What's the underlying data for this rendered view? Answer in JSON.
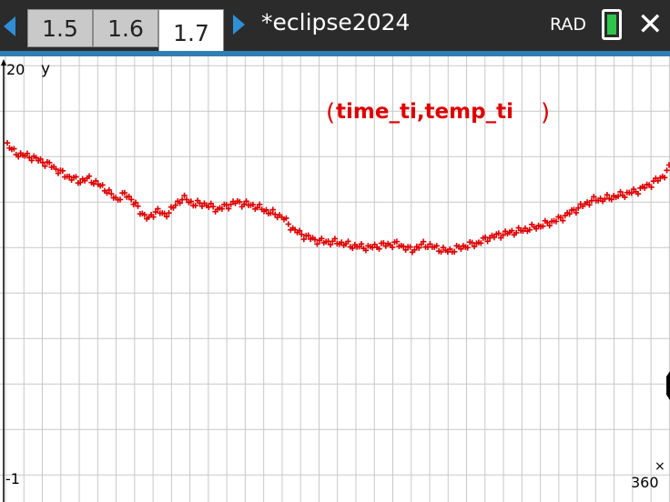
{
  "header": {
    "tabs": [
      {
        "label": "1.5"
      },
      {
        "label": "1.6"
      },
      {
        "label": "1.7"
      }
    ],
    "document_title": "*eclipse2024",
    "angle_mode": "RAD"
  },
  "colors": {
    "topbar": "#2b2b2b",
    "accent": "#2f7fb5",
    "series": "#e00000",
    "battery": "#2fc54a"
  },
  "icons": {
    "left": "arrow-left-icon",
    "right": "arrow-right-icon",
    "battery": "battery-icon",
    "close": "close-icon"
  },
  "chart_data": {
    "type": "scatter",
    "xlim": [
      -1,
      360
    ],
    "ylim": [
      null,
      20
    ],
    "axis_labels": {
      "x": "x",
      "y": "y"
    },
    "window_labels": {
      "y_max": "20",
      "x_min": "-1",
      "x_max": "360"
    },
    "grid": true,
    "series": [
      {
        "name": "(time_ti,temp_ti)",
        "marker": "+",
        "anchors": [
          [
            1,
            11.4
          ],
          [
            5,
            10.4
          ],
          [
            15,
            9.9
          ],
          [
            25,
            9.0
          ],
          [
            32,
            8.0
          ],
          [
            40,
            7.3
          ],
          [
            45,
            7.6
          ],
          [
            50,
            7.0
          ],
          [
            55,
            6.3
          ],
          [
            60,
            5.3
          ],
          [
            65,
            5.9
          ],
          [
            68,
            5.4
          ],
          [
            73,
            4.0
          ],
          [
            78,
            3.1
          ],
          [
            82,
            4.2
          ],
          [
            86,
            3.5
          ],
          [
            91,
            4.4
          ],
          [
            96,
            5.5
          ],
          [
            102,
            4.8
          ],
          [
            108,
            4.8
          ],
          [
            115,
            4.2
          ],
          [
            125,
            5.0
          ],
          [
            135,
            4.6
          ],
          [
            142,
            4.0
          ],
          [
            150,
            3.4
          ],
          [
            156,
            2.0
          ],
          [
            162,
            1.3
          ],
          [
            170,
            0.7
          ],
          [
            180,
            0.6
          ],
          [
            188,
            0.2
          ],
          [
            197,
            0.0
          ],
          [
            205,
            0.3
          ],
          [
            213,
            0.4
          ],
          [
            220,
            -0.3
          ],
          [
            227,
            0.4
          ],
          [
            236,
            -0.2
          ],
          [
            240,
            -0.4
          ],
          [
            248,
            0.1
          ],
          [
            256,
            0.5
          ],
          [
            262,
            1.1
          ],
          [
            270,
            1.5
          ],
          [
            280,
            1.9
          ],
          [
            290,
            2.4
          ],
          [
            300,
            3.1
          ],
          [
            310,
            4.3
          ],
          [
            318,
            5.2
          ],
          [
            326,
            5.4
          ],
          [
            334,
            5.8
          ],
          [
            342,
            6.2
          ],
          [
            350,
            7.0
          ],
          [
            357,
            7.9
          ],
          [
            360,
            8.8
          ]
        ]
      }
    ]
  }
}
